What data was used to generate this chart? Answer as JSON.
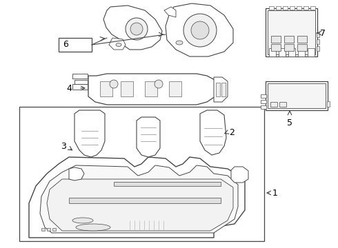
{
  "bg_color": "#ffffff",
  "line_color": "#444444",
  "label_color": "#000000",
  "fig_width": 4.9,
  "fig_height": 3.6,
  "dpi": 100
}
